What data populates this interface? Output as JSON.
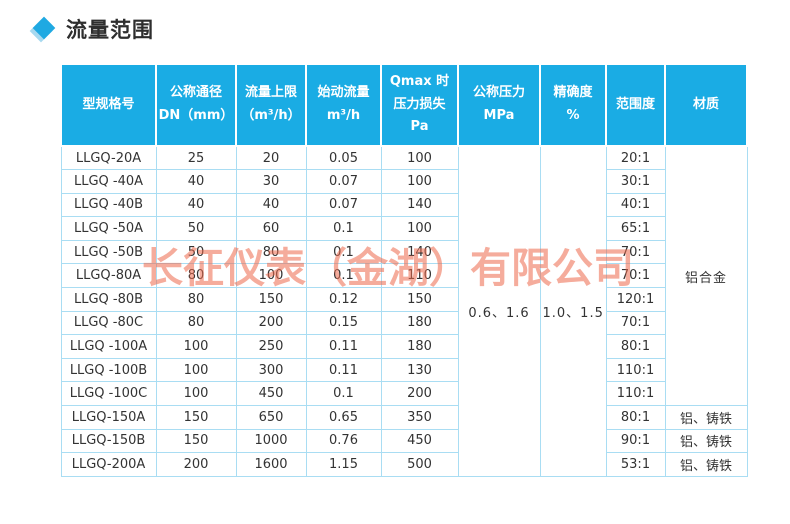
{
  "page": {
    "section_title": "流量范围"
  },
  "watermark": {
    "text": "长征仪表（金湖）有限公司"
  },
  "colors": {
    "header_bg": "#1aace4",
    "cell_border": "#a9ddf3",
    "body_text": "#333333",
    "title_text": "#2e2e2e",
    "diamond": "#1fa9e2",
    "diamond_shadow": "#a6d9f0",
    "watermark": "#ee6a4d"
  },
  "table": {
    "headers": [
      {
        "id": "model",
        "lines": [
          "型规格号"
        ]
      },
      {
        "id": "dn",
        "lines": [
          "公称通径",
          "DN（mm）"
        ]
      },
      {
        "id": "flow_max",
        "lines": [
          "流量上限",
          "（m³/h）"
        ]
      },
      {
        "id": "flow_start",
        "lines": [
          "始动流量",
          "m³/h"
        ]
      },
      {
        "id": "pressure_loss",
        "lines": [
          "Qmax 时",
          "压力损失",
          "Pa"
        ]
      },
      {
        "id": "nominal_pressure",
        "lines": [
          "公称压力",
          "MPa"
        ]
      },
      {
        "id": "accuracy",
        "lines": [
          "精确度",
          "%"
        ]
      },
      {
        "id": "range",
        "lines": [
          "范围度"
        ]
      },
      {
        "id": "material",
        "lines": [
          "材质"
        ]
      }
    ],
    "merged_cells": {
      "nominal_pressure": "0.6、1.6",
      "accuracy": "1.0、1.5",
      "material_rows_1_to_11": "铝合金"
    },
    "rows": [
      {
        "model": "LLGQ-20A",
        "dn": "25",
        "flow_max": "20",
        "flow_start": "0.05",
        "pressure_loss": "100",
        "range": "20:1",
        "material": null
      },
      {
        "model": "LLGQ -40A",
        "dn": "40",
        "flow_max": "30",
        "flow_start": "0.07",
        "pressure_loss": "100",
        "range": "30:1",
        "material": null
      },
      {
        "model": "LLGQ -40B",
        "dn": "40",
        "flow_max": "40",
        "flow_start": "0.07",
        "pressure_loss": "140",
        "range": "40:1",
        "material": null
      },
      {
        "model": "LLGQ -50A",
        "dn": "50",
        "flow_max": "60",
        "flow_start": "0.1",
        "pressure_loss": "100",
        "range": "65:1",
        "material": null
      },
      {
        "model": "LLGQ -50B",
        "dn": "50",
        "flow_max": "80",
        "flow_start": "0.1",
        "pressure_loss": "140",
        "range": "70:1",
        "material": null
      },
      {
        "model": "LLGQ-80A",
        "dn": "80",
        "flow_max": "100",
        "flow_start": "0.1",
        "pressure_loss": "110",
        "range": "70:1",
        "material": null
      },
      {
        "model": "LLGQ -80B",
        "dn": "80",
        "flow_max": "150",
        "flow_start": "0.12",
        "pressure_loss": "150",
        "range": "120:1",
        "material": null
      },
      {
        "model": "LLGQ -80C",
        "dn": "80",
        "flow_max": "200",
        "flow_start": "0.15",
        "pressure_loss": "180",
        "range": "70:1",
        "material": null
      },
      {
        "model": "LLGQ -100A",
        "dn": "100",
        "flow_max": "250",
        "flow_start": "0.11",
        "pressure_loss": "180",
        "range": "80:1",
        "material": null
      },
      {
        "model": "LLGQ -100B",
        "dn": "100",
        "flow_max": "300",
        "flow_start": "0.11",
        "pressure_loss": "130",
        "range": "110:1",
        "material": null
      },
      {
        "model": "LLGQ -100C",
        "dn": "100",
        "flow_max": "450",
        "flow_start": "0.1",
        "pressure_loss": "200",
        "range": "110:1",
        "material": null
      },
      {
        "model": "LLGQ-150A",
        "dn": "150",
        "flow_max": "650",
        "flow_start": "0.65",
        "pressure_loss": "350",
        "range": "80:1",
        "material": "铝、铸铁"
      },
      {
        "model": "LLGQ-150B",
        "dn": "150",
        "flow_max": "1000",
        "flow_start": "0.76",
        "pressure_loss": "450",
        "range": "90:1",
        "material": "铝、铸铁"
      },
      {
        "model": "LLGQ-200A",
        "dn": "200",
        "flow_max": "1600",
        "flow_start": "1.15",
        "pressure_loss": "500",
        "range": "53:1",
        "material": "铝、铸铁"
      }
    ]
  }
}
